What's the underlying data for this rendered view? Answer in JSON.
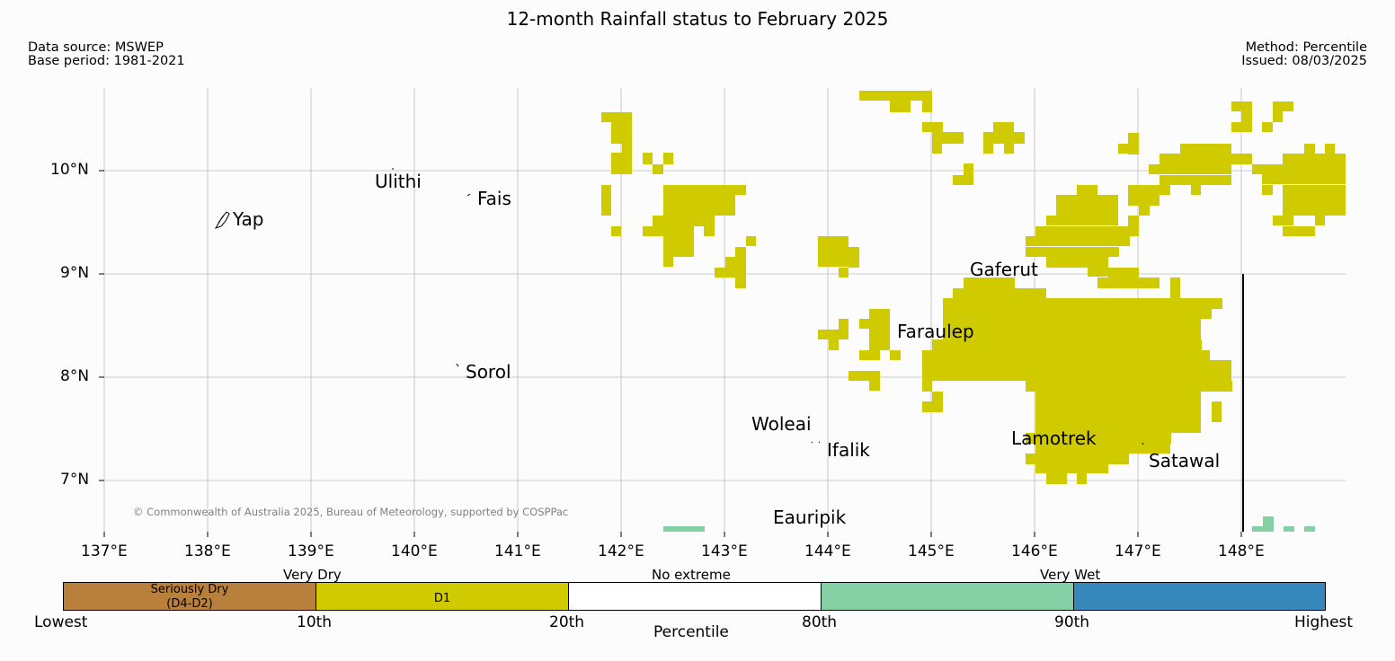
{
  "title": "12-month Rainfall status to February 2025",
  "header": {
    "data_source": "Data source: MSWEP",
    "base_period": "Base period: 1981-2021",
    "method": "Method: Percentile",
    "issued": "Issued: 08/03/2025"
  },
  "copyright": "© Commonwealth of Australia 2025, Bureau of Meteorology, supported by COSPPac",
  "map": {
    "lon_ticks": [
      "137°E",
      "138°E",
      "139°E",
      "140°E",
      "141°E",
      "142°E",
      "143°E",
      "144°E",
      "145°E",
      "146°E",
      "147°E",
      "148°E"
    ],
    "lat_ticks": [
      "10°N",
      "9°N",
      "8°N",
      "7°N"
    ],
    "places": [
      "Ulithi",
      "Fais",
      "Yap",
      "Gaferut",
      "Faraulep",
      "Sorol",
      "Woleai",
      "Ifalik",
      "Lamotrek",
      "Satawal",
      "Eauripik"
    ]
  },
  "legend": {
    "group_labels": [
      "Very Dry",
      "No extreme",
      "Very Wet"
    ],
    "classes": [
      {
        "label_line1": "Seriously Dry",
        "label_line2": "(D4-D2)",
        "color": "#b8803b"
      },
      {
        "label_line1": "D1",
        "label_line2": "",
        "color": "#d0ca00"
      },
      {
        "label_line1": "",
        "label_line2": "",
        "color": "#ffffff"
      },
      {
        "label_line1": "",
        "label_line2": "",
        "color": "#85cfa5"
      },
      {
        "label_line1": "",
        "label_line2": "",
        "color": "#3788ba"
      }
    ],
    "ticks": [
      "Lowest",
      "10th",
      "20th",
      "80th",
      "90th",
      "Highest"
    ],
    "axis_label": "Percentile"
  }
}
